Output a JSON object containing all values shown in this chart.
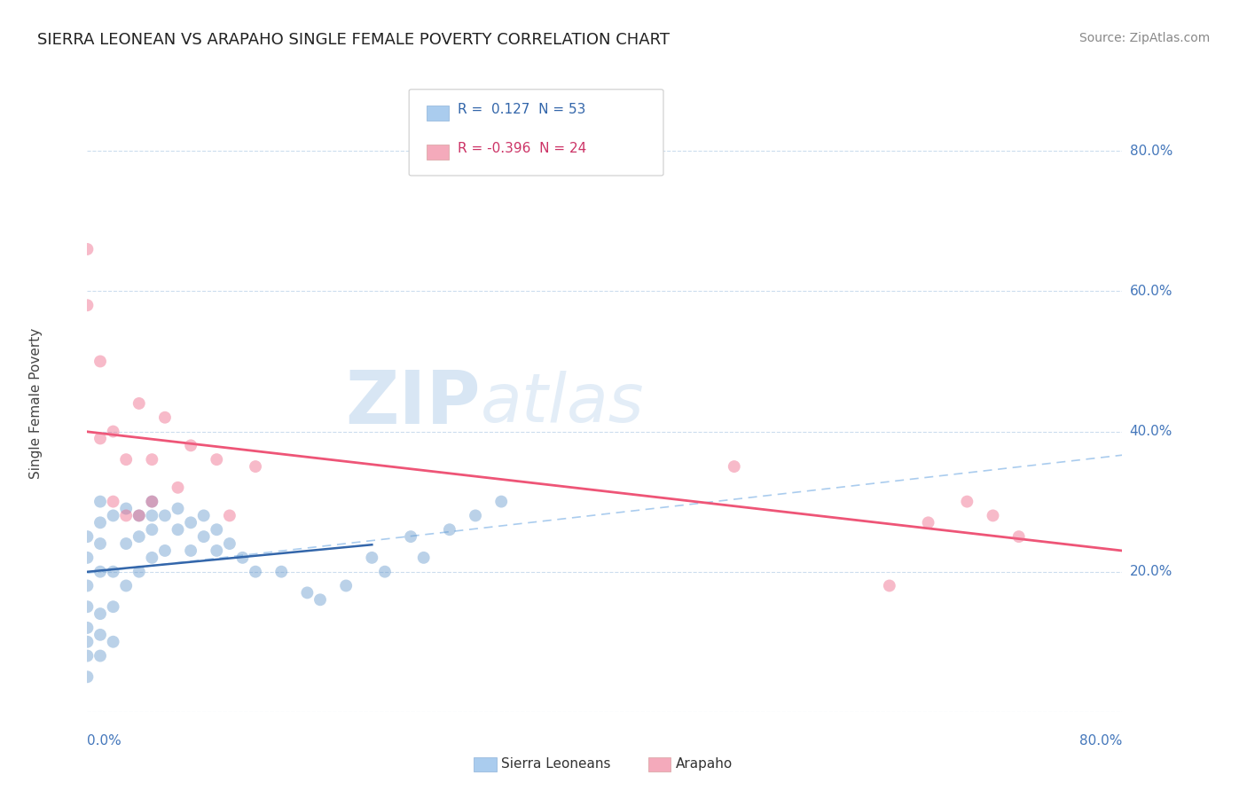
{
  "title": "SIERRA LEONEAN VS ARAPAHO SINGLE FEMALE POVERTY CORRELATION CHART",
  "source": "Source: ZipAtlas.com",
  "ylabel": "Single Female Poverty",
  "xlim": [
    0.0,
    0.8
  ],
  "ylim": [
    0.0,
    0.88
  ],
  "ytick_vals": [
    0.0,
    0.2,
    0.4,
    0.6,
    0.8
  ],
  "ytick_labels": [
    "",
    "20.0%",
    "40.0%",
    "60.0%",
    "80.0%"
  ],
  "background_color": "#ffffff",
  "grid_color": "#ccddee",
  "watermark_zip": "ZIP",
  "watermark_atlas": "atlas",
  "sierra_color": "#6699cc",
  "arapaho_color": "#ee6688",
  "trend_sierra_color": "#aaccee",
  "trend_arapaho_color": "#ee5577",
  "sierra_legend_color": "#aaccee",
  "arapaho_legend_color": "#f4aabb",
  "sierra_points_x": [
    0.0,
    0.0,
    0.0,
    0.0,
    0.0,
    0.0,
    0.0,
    0.0,
    0.01,
    0.01,
    0.01,
    0.01,
    0.01,
    0.01,
    0.01,
    0.02,
    0.02,
    0.02,
    0.02,
    0.03,
    0.03,
    0.03,
    0.04,
    0.04,
    0.04,
    0.05,
    0.05,
    0.05,
    0.05,
    0.06,
    0.06,
    0.07,
    0.07,
    0.08,
    0.08,
    0.09,
    0.09,
    0.1,
    0.1,
    0.11,
    0.12,
    0.13,
    0.15,
    0.17,
    0.18,
    0.2,
    0.22,
    0.23,
    0.25,
    0.26,
    0.28,
    0.3,
    0.32
  ],
  "sierra_points_y": [
    0.05,
    0.08,
    0.1,
    0.12,
    0.15,
    0.18,
    0.22,
    0.25,
    0.08,
    0.11,
    0.14,
    0.2,
    0.24,
    0.27,
    0.3,
    0.1,
    0.15,
    0.2,
    0.28,
    0.18,
    0.24,
    0.29,
    0.2,
    0.25,
    0.28,
    0.22,
    0.26,
    0.28,
    0.3,
    0.23,
    0.28,
    0.26,
    0.29,
    0.23,
    0.27,
    0.25,
    0.28,
    0.23,
    0.26,
    0.24,
    0.22,
    0.2,
    0.2,
    0.17,
    0.16,
    0.18,
    0.22,
    0.2,
    0.25,
    0.22,
    0.26,
    0.28,
    0.3
  ],
  "arapaho_points_x": [
    0.0,
    0.0,
    0.01,
    0.01,
    0.02,
    0.02,
    0.03,
    0.03,
    0.04,
    0.04,
    0.05,
    0.05,
    0.06,
    0.07,
    0.08,
    0.1,
    0.11,
    0.13,
    0.5,
    0.62,
    0.65,
    0.68,
    0.7,
    0.72
  ],
  "arapaho_points_y": [
    0.58,
    0.66,
    0.39,
    0.5,
    0.3,
    0.4,
    0.28,
    0.36,
    0.28,
    0.44,
    0.3,
    0.36,
    0.42,
    0.32,
    0.38,
    0.36,
    0.28,
    0.35,
    0.35,
    0.18,
    0.27,
    0.3,
    0.28,
    0.25
  ]
}
